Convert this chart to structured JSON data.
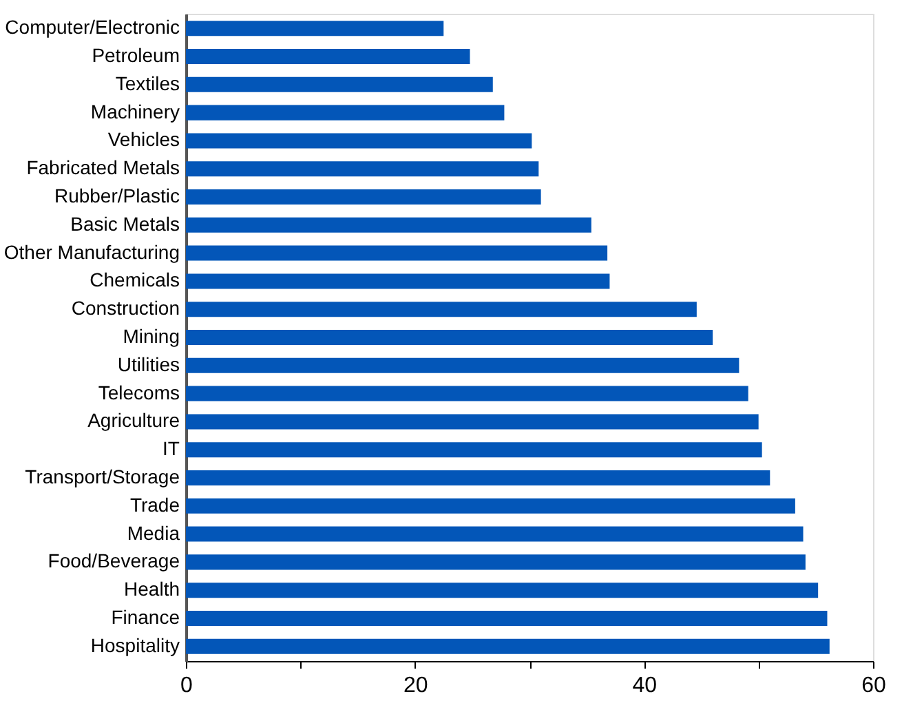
{
  "chart_data": {
    "type": "bar",
    "orientation": "horizontal",
    "color": "#0356b8",
    "categories": [
      "Computer/Electronic",
      "Petroleum",
      "Textiles",
      "Machinery",
      "Vehicles",
      "Fabricated Metals",
      "Rubber/Plastic",
      "Basic Metals",
      "Other Manufacturing",
      "Chemicals",
      "Construction",
      "Mining",
      "Utilities",
      "Telecoms",
      "Agriculture",
      "IT",
      "Transport/Storage",
      "Trade",
      "Media",
      "Food/Beverage",
      "Health",
      "Finance",
      "Hospitality"
    ],
    "values": [
      22.5,
      24.8,
      26.8,
      27.8,
      30.2,
      30.8,
      31.0,
      35.4,
      36.8,
      37.0,
      44.6,
      46.0,
      48.3,
      49.1,
      50.0,
      50.3,
      51.0,
      53.2,
      53.9,
      54.1,
      55.2,
      56.0,
      56.2
    ],
    "xlim": [
      0,
      60
    ],
    "xticks": [
      0,
      {
        "value": 10,
        "label": null
      },
      20,
      {
        "value": 30,
        "label": null
      },
      40,
      {
        "value": 50,
        "label": null
      },
      60
    ],
    "grid": false
  }
}
